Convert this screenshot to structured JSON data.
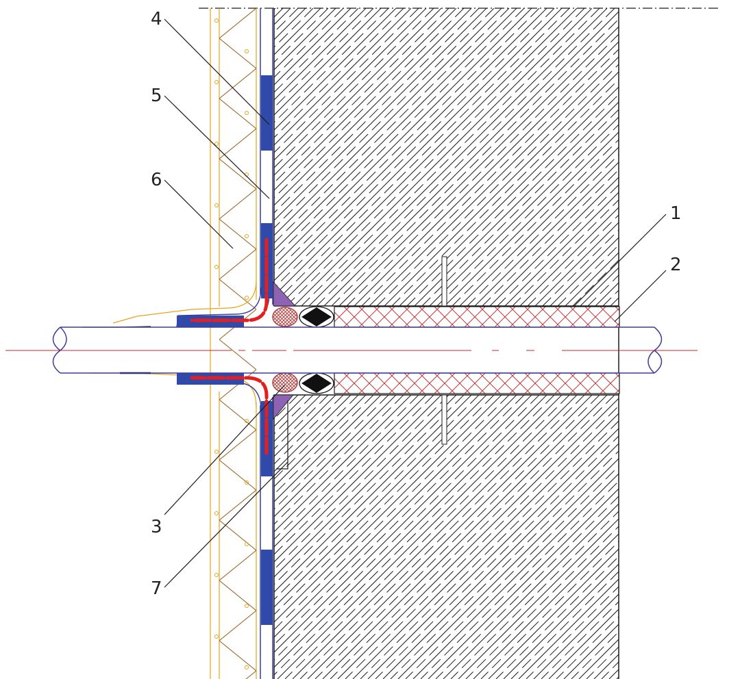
{
  "callouts": [
    {
      "id": "1",
      "label": "1"
    },
    {
      "id": "2",
      "label": "2"
    },
    {
      "id": "3",
      "label": "3"
    },
    {
      "id": "4",
      "label": "4"
    },
    {
      "id": "5",
      "label": "5"
    },
    {
      "id": "6",
      "label": "6"
    },
    {
      "id": "7",
      "label": "7"
    }
  ],
  "colors": {
    "line": "#1a1a1a",
    "pipe_outline": "#3b3b9e",
    "centerline": "#d62020",
    "membrane_blue": "#2f4aa8",
    "red_dash": "#e51f1f",
    "sleeve_hatch": "#c0393b",
    "insulation_orange": "#e7a317",
    "insulation_brown": "#9b6a2a",
    "fillet_purple": "#8e63b4",
    "rope_fill": "#b04545"
  }
}
